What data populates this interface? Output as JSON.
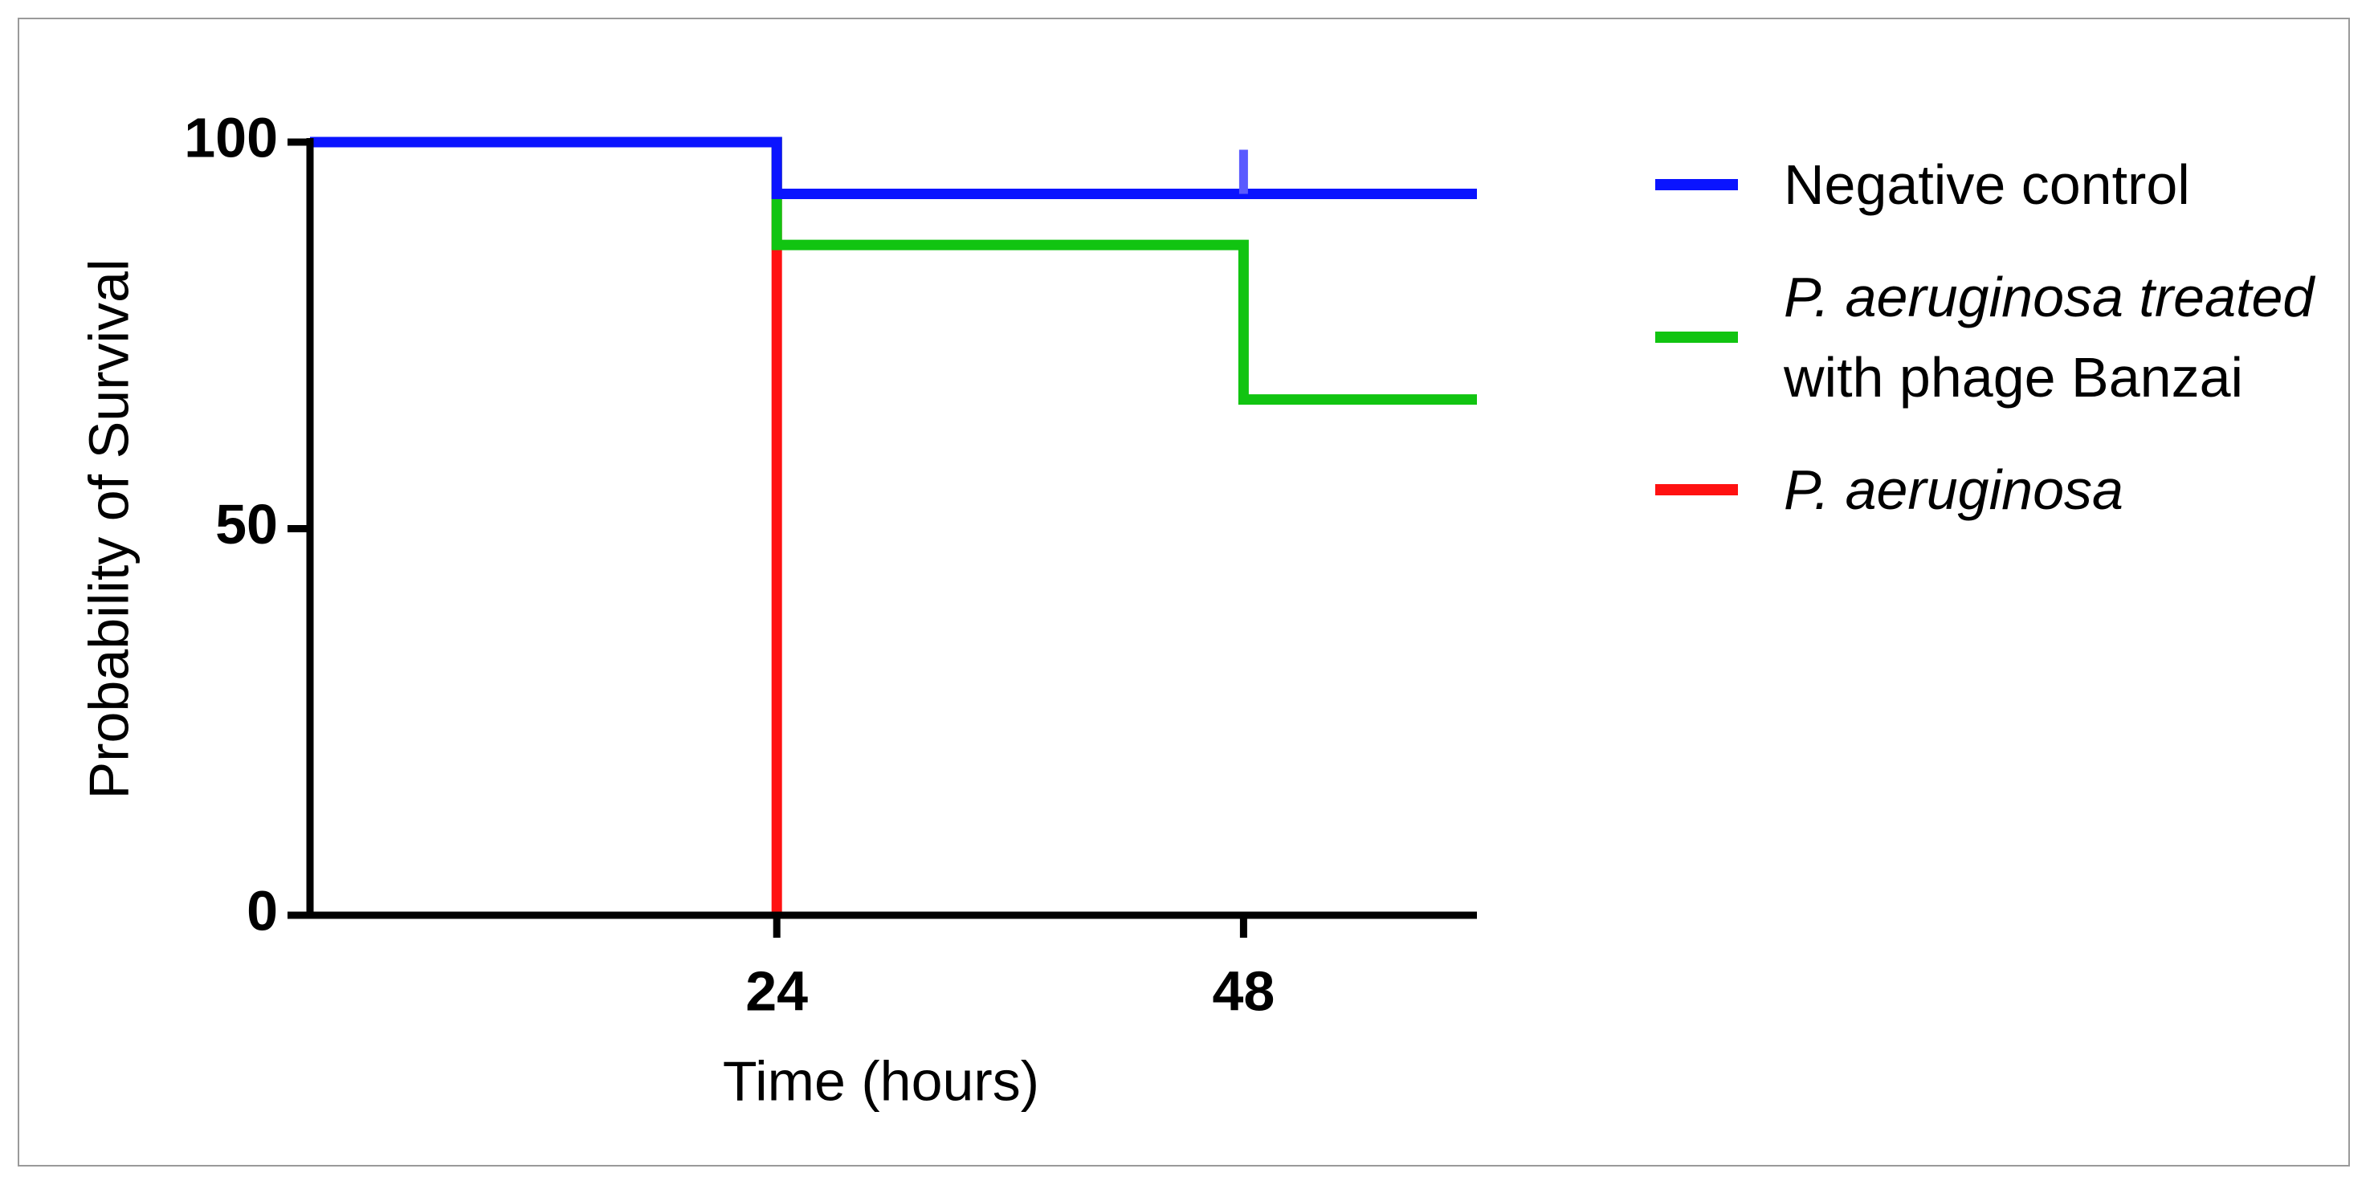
{
  "chart_data": {
    "type": "line",
    "step": true,
    "x_label": "Time (hours)",
    "y_label": "Probability of Survival",
    "xlim": [
      0,
      60
    ],
    "ylim": [
      0,
      100
    ],
    "xticks": [
      24,
      48
    ],
    "yticks": [
      0,
      50,
      100
    ],
    "grid": false,
    "legend": "right",
    "series": [
      {
        "name": "Negative control",
        "color": "#0a14ff",
        "x": [
          0,
          24,
          60
        ],
        "values": [
          100,
          93.3,
          93.3
        ],
        "censored": {
          "x": [
            48
          ],
          "values": [
            93.3
          ],
          "color": "#5a5aff"
        }
      },
      {
        "name": "P. aeruginosa treated with phage Banzai",
        "color": "#11c411",
        "x": [
          0,
          24,
          48,
          60
        ],
        "values": [
          100,
          86.7,
          66.7,
          66.7
        ]
      },
      {
        "name": "P. aeruginosa",
        "color": "#ff1111",
        "x": [
          0,
          24
        ],
        "values": [
          100,
          0
        ]
      }
    ]
  }
}
